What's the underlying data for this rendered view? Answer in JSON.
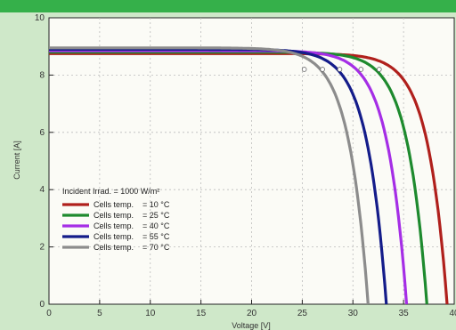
{
  "chart_data": {
    "type": "line",
    "xlabel": "Voltage [V]",
    "ylabel": "Current [A]",
    "xlim": [
      0,
      40
    ],
    "ylim": [
      0,
      10
    ],
    "x_ticks": [
      "0",
      "5",
      "10",
      "15",
      "20",
      "25",
      "30",
      "35",
      "40"
    ],
    "y_ticks": [
      "0",
      "2",
      "4",
      "6",
      "8",
      "10"
    ],
    "grid": true,
    "legend": {
      "position": "bottom-left",
      "title": "Incident Irrad. = 1000 W/m²",
      "entries": [
        {
          "label": "Cells temp.",
          "value": "= 10 °C",
          "color": "#b0201c"
        },
        {
          "label": "Cells temp.",
          "value": "= 25 °C",
          "color": "#1e8a2e"
        },
        {
          "label": "Cells temp.",
          "value": "= 40 °C",
          "color": "#a52ee6"
        },
        {
          "label": "Cells temp.",
          "value": "= 55 °C",
          "color": "#141c8a"
        },
        {
          "label": "Cells temp.",
          "value": "= 70 °C",
          "color": "#8c8c8c"
        }
      ]
    },
    "series": [
      {
        "name": "Cells temp. = 10 °C",
        "color": "#b0201c",
        "isc": 8.75,
        "voc": 39.3,
        "mpp": [
          32.6,
          8.2
        ]
      },
      {
        "name": "Cells temp. = 25 °C",
        "color": "#1e8a2e",
        "isc": 8.8,
        "voc": 37.3,
        "mpp": [
          30.8,
          8.2
        ]
      },
      {
        "name": "Cells temp. = 40 °C",
        "color": "#a52ee6",
        "isc": 8.85,
        "voc": 35.3,
        "mpp": [
          28.7,
          8.2
        ]
      },
      {
        "name": "Cells temp. = 55 °C",
        "color": "#141c8a",
        "isc": 8.9,
        "voc": 33.3,
        "mpp": [
          27.0,
          8.2
        ]
      },
      {
        "name": "Cells temp. = 70 °C",
        "color": "#8c8c8c",
        "isc": 8.95,
        "voc": 31.5,
        "mpp": [
          25.2,
          8.2
        ]
      }
    ]
  }
}
